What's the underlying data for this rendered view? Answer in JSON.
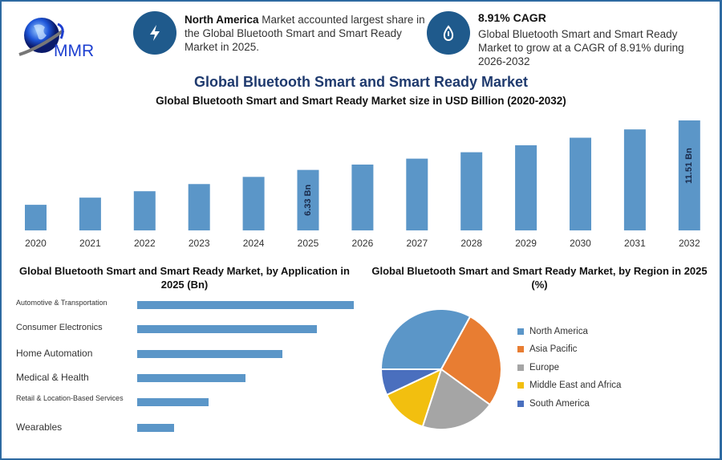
{
  "logo": {
    "text": "MMR"
  },
  "info1": {
    "icon": "lightning-icon",
    "bold": "North America",
    "text": " Market accounted largest share in the Global Bluetooth Smart and Smart Ready Market in 2025."
  },
  "info2": {
    "icon": "growth-drop-icon",
    "bold": "8.91% CAGR",
    "text": "Global Bluetooth Smart and Smart Ready Market to grow at a CAGR of 8.91% during 2026-2032"
  },
  "title": "Global Bluetooth Smart and Smart Ready Market",
  "colors": {
    "bar": "#5b96c8",
    "title": "#1f3a6e",
    "frame": "#2e6aa1"
  },
  "chart_data": [
    {
      "type": "bar",
      "title": "Global Bluetooth Smart and Smart Ready Market size in USD Billion (2020-2032)",
      "categories": [
        "2020",
        "2021",
        "2022",
        "2023",
        "2024",
        "2025",
        "2026",
        "2027",
        "2028",
        "2029",
        "2030",
        "2031",
        "2032"
      ],
      "values": [
        2.68,
        3.43,
        4.1,
        4.85,
        5.6,
        6.33,
        6.89,
        7.51,
        8.18,
        8.91,
        9.7,
        10.57,
        11.51
      ],
      "data_labels": {
        "2025": "6.33 Bn",
        "2032": "11.51 Bn"
      },
      "ylim": [
        0,
        11.51
      ],
      "grid": false
    },
    {
      "type": "bar",
      "orientation": "horizontal",
      "title": "Global Bluetooth Smart and Smart Ready Market, by Application in 2025 (Bn)",
      "categories": [
        "Automotive & Transportation",
        "Consumer Electronics",
        "Home Automation",
        "Medical & Health",
        "Retail & Location-Based Services",
        "Wearables"
      ],
      "values": [
        1.0,
        0.83,
        0.67,
        0.5,
        0.33,
        0.17
      ]
    },
    {
      "type": "pie",
      "title": "Global Bluetooth Smart and Smart Ready Market, by Region in 2025 (%)",
      "labels": [
        "North America",
        "Asia Pacific",
        "Europe",
        "Middle East and Africa",
        "South America"
      ],
      "values": [
        33,
        27,
        20,
        13,
        7
      ],
      "colors": [
        "#5b96c8",
        "#e87d32",
        "#a5a5a5",
        "#f2bf0f",
        "#4a6fbe"
      ],
      "legend": "right"
    }
  ]
}
